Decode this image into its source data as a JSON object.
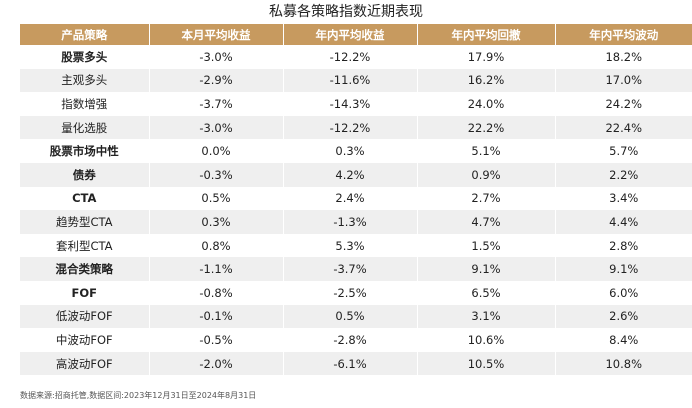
{
  "title": "私募各策略指数近期表现",
  "table": {
    "headers": [
      "产品策略",
      "本月平均收益",
      "年内平均收益",
      "年内平均回撤",
      "年内平均波动"
    ],
    "rows": [
      {
        "name": "股票多头",
        "bold": true,
        "values": [
          "-3.0%",
          "-12.2%",
          "17.9%",
          "18.2%"
        ]
      },
      {
        "name": "主观多头",
        "bold": false,
        "values": [
          "-2.9%",
          "-11.6%",
          "16.2%",
          "17.0%"
        ]
      },
      {
        "name": "指数增强",
        "bold": false,
        "values": [
          "-3.7%",
          "-14.3%",
          "24.0%",
          "24.2%"
        ]
      },
      {
        "name": "量化选股",
        "bold": false,
        "values": [
          "-3.0%",
          "-12.2%",
          "22.2%",
          "22.4%"
        ]
      },
      {
        "name": "股票市场中性",
        "bold": true,
        "values": [
          "0.0%",
          "0.3%",
          "5.1%",
          "5.7%"
        ]
      },
      {
        "name": "债券",
        "bold": true,
        "values": [
          "-0.3%",
          "4.2%",
          "0.9%",
          "2.2%"
        ]
      },
      {
        "name": "CTA",
        "bold": true,
        "values": [
          "0.5%",
          "2.4%",
          "2.7%",
          "3.4%"
        ]
      },
      {
        "name": "趋势型CTA",
        "bold": false,
        "values": [
          "0.3%",
          "-1.3%",
          "4.7%",
          "4.4%"
        ]
      },
      {
        "name": "套利型CTA",
        "bold": false,
        "values": [
          "0.8%",
          "5.3%",
          "1.5%",
          "2.8%"
        ]
      },
      {
        "name": "混合类策略",
        "bold": true,
        "values": [
          "-1.1%",
          "-3.7%",
          "9.1%",
          "9.1%"
        ]
      },
      {
        "name": "FOF",
        "bold": true,
        "values": [
          "-0.8%",
          "-2.5%",
          "6.5%",
          "6.0%"
        ]
      },
      {
        "name": "低波动FOF",
        "bold": false,
        "values": [
          "-0.1%",
          "0.5%",
          "3.1%",
          "2.6%"
        ]
      },
      {
        "name": "中波动FOF",
        "bold": false,
        "values": [
          "-0.5%",
          "-2.8%",
          "10.6%",
          "8.4%"
        ]
      },
      {
        "name": "高波动FOF",
        "bold": false,
        "values": [
          "-2.0%",
          "-6.1%",
          "10.5%",
          "10.8%"
        ]
      }
    ]
  },
  "footer": "数据来源:招商托管,数据区间:2023年12月31日至2024年8月31日"
}
